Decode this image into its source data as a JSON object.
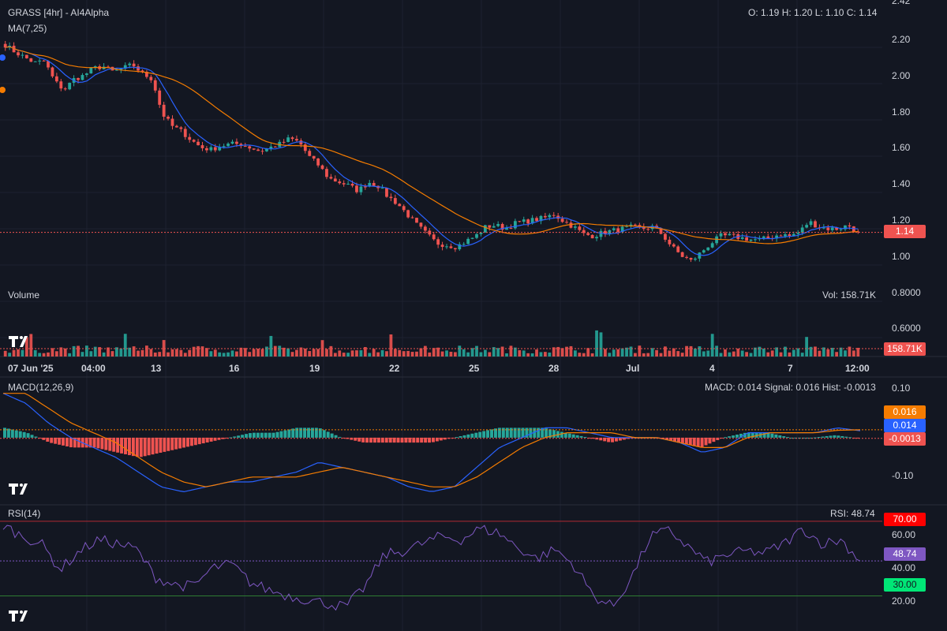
{
  "header": {
    "title": "GRASS [4hr] - AI4Alpha",
    "ma_label": "MA(7,25)",
    "ohlc": "O: 1.19 H: 1.20 L: 1.10 C: 1.14"
  },
  "volume_panel": {
    "label": "Volume",
    "readout": "Vol: 158.71K",
    "tag": "158.71K"
  },
  "macd_panel": {
    "label": "MACD(12,26,9)",
    "readout": "MACD: 0.014 Signal: 0.016 Hist: -0.0013",
    "tag_signal": "0.016",
    "tag_macd": "0.014",
    "tag_hist": "-0.0013",
    "axis": [
      "0.10",
      "-0.10"
    ]
  },
  "rsi_panel": {
    "label": "RSI(14)",
    "readout": "RSI: 48.74",
    "tag_70": "70.00",
    "tag_value": "48.74",
    "tag_30": "30.00",
    "axis": [
      "60.00",
      "40.00",
      "20.00"
    ]
  },
  "price_panel": {
    "last_price_tag": "1.14",
    "axis": [
      "2.42",
      "2.20",
      "2.00",
      "1.80",
      "1.60",
      "1.40",
      "1.20",
      "1.00",
      "0.8000",
      "0.6000"
    ]
  },
  "time_axis": [
    "07 Jun '25",
    "04:00",
    "13",
    "16",
    "19",
    "22",
    "25",
    "28",
    "Jul",
    "4",
    "7",
    "12:00"
  ],
  "colors": {
    "bg": "#131722",
    "up": "#26a69a",
    "down": "#ef5350",
    "ma7": "#2962ff",
    "ma25": "#f57c00",
    "rsi": "#7e57c2",
    "grid": "#1e2230"
  },
  "chart_data": [
    {
      "type": "candlestick",
      "title": "GRASS [4hr] - AI4Alpha",
      "ylim": [
        0.6,
        2.42
      ],
      "last_close": 1.14,
      "ohlc_last": {
        "open": 1.19,
        "high": 1.2,
        "low": 1.1,
        "close": 1.14
      },
      "close_trace": [
        2.18,
        2.14,
        2.11,
        2.08,
        2.09,
        1.98,
        1.93,
        1.99,
        2.01,
        2.05,
        2.06,
        2.03,
        2.05,
        2.07,
        2.02,
        1.99,
        1.8,
        1.73,
        1.7,
        1.65,
        1.61,
        1.6,
        1.62,
        1.63,
        1.63,
        1.61,
        1.59,
        1.61,
        1.63,
        1.66,
        1.64,
        1.56,
        1.51,
        1.44,
        1.42,
        1.4,
        1.37,
        1.42,
        1.4,
        1.34,
        1.3,
        1.24,
        1.18,
        1.13,
        1.08,
        1.07,
        1.06,
        1.09,
        1.12,
        1.17,
        1.18,
        1.16,
        1.19,
        1.2,
        1.21,
        1.22,
        1.24,
        1.2,
        1.17,
        1.13,
        1.12,
        1.14,
        1.15,
        1.16,
        1.17,
        1.16,
        1.17,
        1.13,
        1.06,
        1.01,
        0.98,
        1.03,
        1.08,
        1.12,
        1.12,
        1.11,
        1.1,
        1.1,
        1.11,
        1.13,
        1.12,
        1.14,
        1.2,
        1.17,
        1.16,
        1.16,
        1.18,
        1.14
      ],
      "moving_averages": [
        {
          "name": "MA(7,25)"
        }
      ]
    },
    {
      "type": "bar",
      "title": "Volume",
      "last_value": "158.71K"
    },
    {
      "type": "line",
      "title": "MACD(12,26,9)",
      "ylim": [
        -0.13,
        0.12
      ],
      "macd": 0.014,
      "signal": 0.016,
      "hist": -0.0013,
      "macd_trace": [
        0.09,
        0.07,
        0.03,
        0.0,
        -0.02,
        -0.04,
        -0.07,
        -0.1,
        -0.11,
        -0.1,
        -0.09,
        -0.09,
        -0.08,
        -0.07,
        -0.05,
        -0.06,
        -0.07,
        -0.08,
        -0.1,
        -0.11,
        -0.1,
        -0.06,
        -0.02,
        0.0,
        0.02,
        0.02,
        0.01,
        0.0,
        0.0,
        0.0,
        -0.01,
        -0.03,
        -0.02,
        0.01,
        0.01,
        0.01,
        0.01,
        0.02,
        0.014
      ],
      "signal_trace": [
        0.09,
        0.09,
        0.06,
        0.03,
        0.01,
        -0.01,
        -0.04,
        -0.07,
        -0.09,
        -0.1,
        -0.09,
        -0.08,
        -0.08,
        -0.08,
        -0.07,
        -0.06,
        -0.07,
        -0.08,
        -0.09,
        -0.1,
        -0.1,
        -0.08,
        -0.05,
        -0.02,
        0.0,
        0.01,
        0.01,
        0.01,
        0.0,
        0.0,
        -0.01,
        -0.02,
        -0.02,
        0.0,
        0.01,
        0.01,
        0.01,
        0.015,
        0.016
      ],
      "hist_trace": [
        0.02,
        0.01,
        -0.01,
        -0.02,
        -0.02,
        -0.03,
        -0.04,
        -0.03,
        -0.02,
        -0.01,
        0.0,
        0.01,
        0.01,
        0.02,
        0.02,
        0.0,
        -0.01,
        -0.01,
        -0.01,
        -0.01,
        0.0,
        0.01,
        0.02,
        0.02,
        0.02,
        0.01,
        0.0,
        -0.01,
        0.0,
        0.0,
        -0.01,
        -0.02,
        0.0,
        0.01,
        0.01,
        0.0,
        0.0,
        0.005,
        -0.0013
      ]
    },
    {
      "type": "line",
      "title": "RSI(14)",
      "ylim": [
        12,
        78
      ],
      "value": 48.74,
      "levels": [
        70,
        30
      ],
      "rsi_trace": [
        68,
        62,
        58,
        44,
        54,
        60,
        58,
        55,
        40,
        36,
        35,
        45,
        47,
        37,
        33,
        30,
        28,
        26,
        24,
        35,
        52,
        54,
        58,
        62,
        60,
        66,
        64,
        56,
        50,
        55,
        46,
        30,
        24,
        40,
        62,
        65,
        56,
        48,
        52,
        54,
        53,
        58,
        66,
        58,
        60,
        48.74
      ]
    }
  ]
}
